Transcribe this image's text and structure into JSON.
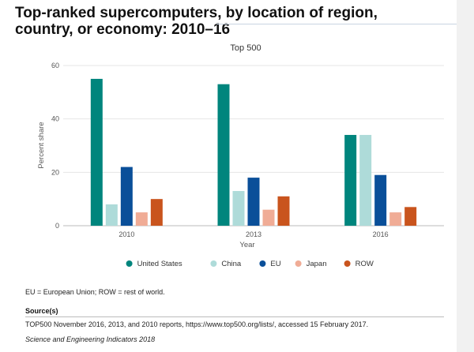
{
  "page": {
    "title_line1": "Top-ranked supercomputers, by location of region,",
    "title_line2": "country, or economy: 2010–16",
    "footnote": "EU = European Union; ROW = rest of world.",
    "source_label": "Source(s)",
    "source_text": "TOP500 November 2016, 2013, and 2010 reports, https://www.top500.org/lists/, accessed 15 February 2017.",
    "publication": "Science and Engineering Indicators 2018"
  },
  "chart_data": {
    "type": "bar",
    "title": "Top 500",
    "xlabel": "Year",
    "ylabel": "Percent share",
    "categories": [
      "2010",
      "2013",
      "2016"
    ],
    "ylim": [
      0,
      60
    ],
    "yticks": [
      0,
      20,
      40,
      60
    ],
    "grid": true,
    "legend": "bottom",
    "series": [
      {
        "name": "United States",
        "color": "#00857d",
        "values": [
          55,
          53,
          34
        ]
      },
      {
        "name": "China",
        "color": "#aedbd9",
        "values": [
          8,
          13,
          34
        ]
      },
      {
        "name": "EU",
        "color": "#0a4f99",
        "values": [
          22,
          18,
          19
        ]
      },
      {
        "name": "Japan",
        "color": "#f0ac96",
        "values": [
          5,
          6,
          5
        ]
      },
      {
        "name": "ROW",
        "color": "#c9541d",
        "values": [
          10,
          11,
          7
        ]
      }
    ]
  }
}
